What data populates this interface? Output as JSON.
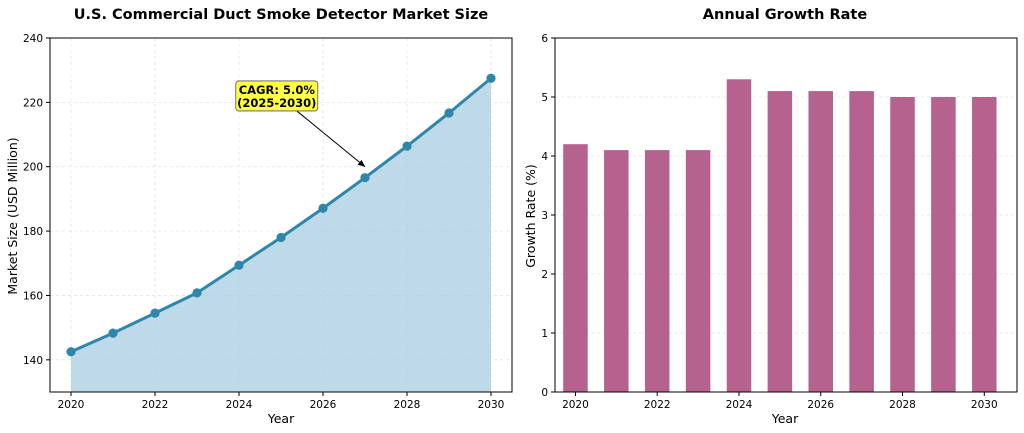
{
  "chart_data": [
    {
      "type": "area",
      "title": "U.S. Commercial Duct Smoke Detector Market Size",
      "xlabel": "Year",
      "ylabel": "Market Size (USD Million)",
      "x": [
        2020,
        2021,
        2022,
        2023,
        2024,
        2025,
        2026,
        2027,
        2028,
        2029,
        2030
      ],
      "values": [
        142.5,
        148.3,
        154.5,
        160.8,
        169.4,
        178.0,
        187.1,
        196.6,
        206.4,
        216.7,
        227.5
      ],
      "xlim": [
        2019.5,
        2030.5
      ],
      "ylim": [
        130,
        240
      ],
      "xticks": [
        2020,
        2022,
        2024,
        2026,
        2028,
        2030
      ],
      "yticks": [
        140,
        160,
        180,
        200,
        220,
        240
      ],
      "grid": true,
      "line_color": "#2e86ab",
      "fill_color": "#a8cde0",
      "annotation": {
        "line1": "CAGR: 5.0%",
        "line2": "(2025-2030)",
        "target_x": 2027,
        "target_y": 200,
        "text_x": 2024.9,
        "text_y": 222,
        "box_color": "#ffff44"
      }
    },
    {
      "type": "bar",
      "title": "Annual Growth Rate",
      "xlabel": "Year",
      "ylabel": "Growth Rate (%)",
      "x": [
        2020,
        2021,
        2022,
        2023,
        2024,
        2025,
        2026,
        2027,
        2028,
        2029,
        2030
      ],
      "values": [
        4.2,
        4.1,
        4.1,
        4.1,
        5.3,
        5.1,
        5.1,
        5.1,
        5.0,
        5.0,
        5.0
      ],
      "xlim": [
        2019.5,
        2030.8
      ],
      "ylim": [
        0,
        6
      ],
      "xticks": [
        2020,
        2022,
        2024,
        2026,
        2028,
        2030
      ],
      "yticks": [
        0,
        1,
        2,
        3,
        4,
        5,
        6
      ],
      "grid": true,
      "bar_color": "#b5628e"
    }
  ]
}
